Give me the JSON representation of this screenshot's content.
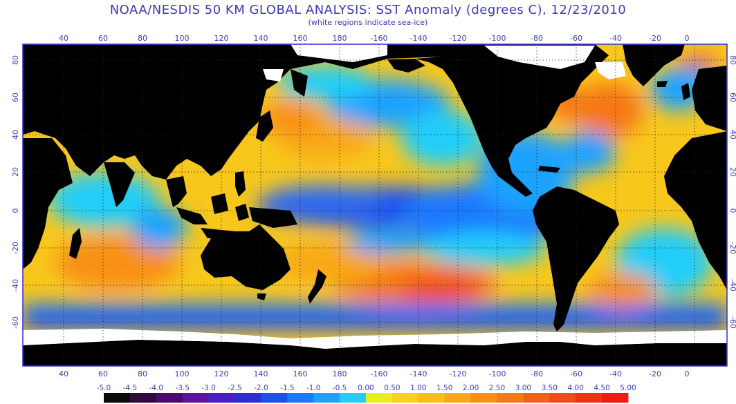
{
  "map": {
    "title": "NOAA/NESDIS 50 KM GLOBAL ANALYSIS: SST Anomaly (degrees C), 12/23/2010",
    "subtitle": "(white regions indicate sea-ice)",
    "lon_ticks": [
      "40",
      "60",
      "80",
      "100",
      "120",
      "140",
      "160",
      "180",
      "-160",
      "-140",
      "-120",
      "-100",
      "-80",
      "-60",
      "-40",
      "-20",
      "0"
    ],
    "lat_ticks": [
      "80",
      "60",
      "40",
      "20",
      "0",
      "-20",
      "-40",
      "-60"
    ],
    "colors": {
      "land": "#000000",
      "ice": "#ffffff",
      "frame": "#3b3bd0",
      "grid": "#222222",
      "ocean_base": "#f7c71c"
    }
  },
  "colorbar": {
    "labels": [
      "-5.0",
      "-4.5",
      "-4.0",
      "-3.5",
      "-3.0",
      "-2.5",
      "-2.0",
      "-1.5",
      "-1.0",
      "-0.5",
      "0.00",
      "0.50",
      "1.00",
      "1.50",
      "2.00",
      "2.50",
      "3.00",
      "3.50",
      "4.00",
      "4.50",
      "5.00"
    ],
    "colors": [
      "#0a0a0a",
      "#300a3a",
      "#4b0a6e",
      "#5a14a0",
      "#4a1ec8",
      "#2e2ed8",
      "#1e50f0",
      "#1c78ff",
      "#1ea2ff",
      "#22cdf8",
      "#e8f01c",
      "#f6d21a",
      "#f7be14",
      "#f8a814",
      "#f89014",
      "#f67818",
      "#f4601a",
      "#f2481a",
      "#f03218",
      "#f01c14"
    ]
  }
}
